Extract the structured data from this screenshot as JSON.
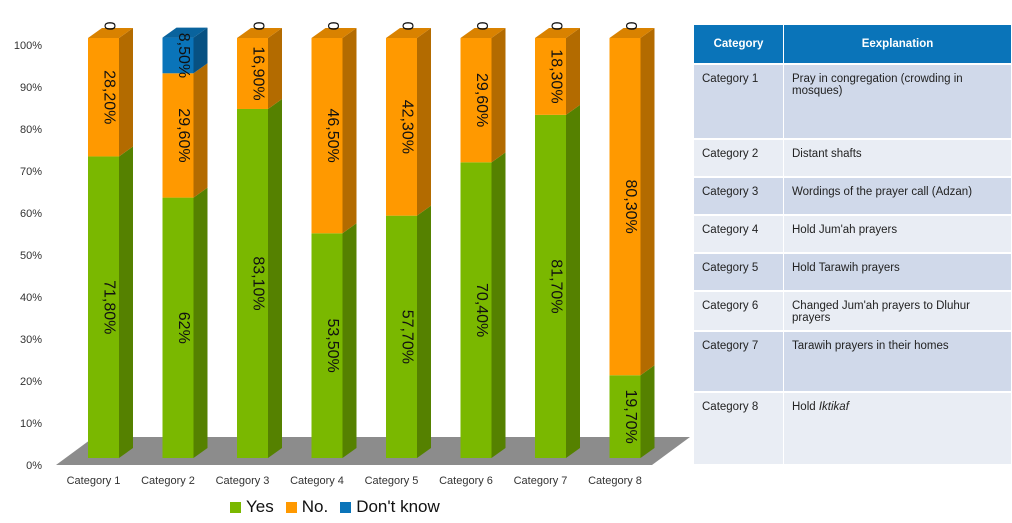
{
  "chart_data": {
    "type": "stacked-bar-3d",
    "categories": [
      "Category 1",
      "Category 2",
      "Category 3",
      "Category 4",
      "Category 5",
      "Category 6",
      "Category 7",
      "Category 8"
    ],
    "series": [
      {
        "name": "Yes",
        "color": "#7ab800",
        "values": [
          71.8,
          62,
          83.1,
          53.5,
          57.7,
          70.4,
          81.7,
          19.7
        ],
        "labels": [
          "71,80%",
          "62%",
          "83,10%",
          "53,50%",
          "57,70%",
          "70,40%",
          "81,70%",
          "19,70%"
        ]
      },
      {
        "name": "No.",
        "color": "#ff9900",
        "values": [
          28.2,
          29.6,
          16.9,
          46.5,
          42.3,
          29.6,
          18.3,
          80.3
        ],
        "labels": [
          "28,20%",
          "29,60%",
          "16,90%",
          "46,50%",
          "42,30%",
          "29,60%",
          "18,30%",
          "80,30%"
        ]
      },
      {
        "name": "Don't know",
        "color": "#0a74b9",
        "values": [
          0,
          8.5,
          0,
          0,
          0,
          0,
          0,
          0
        ],
        "labels": [
          "0",
          "8,50%",
          "0",
          "0",
          "0",
          "0",
          "0",
          "0"
        ]
      }
    ],
    "y_ticks": [
      "0%",
      "10%",
      "20%",
      "30%",
      "40%",
      "50%",
      "60%",
      "70%",
      "80%",
      "90%",
      "100%"
    ],
    "ylim": [
      0,
      100
    ],
    "legend_position": "bottom"
  },
  "table": {
    "headers": [
      "Category",
      "Eexplanation"
    ],
    "rows": [
      {
        "category": "Category 1",
        "explanation": "Pray in congregation (crowding in mosques)"
      },
      {
        "category": "Category 2",
        "explanation": "Distant shafts"
      },
      {
        "category": "Category 3",
        "explanation": "Wordings of the prayer call (Adzan)"
      },
      {
        "category": "Category 4",
        "explanation": "Hold Jum'ah prayers"
      },
      {
        "category": "Category 5",
        "explanation": "Hold Tarawih prayers"
      },
      {
        "category": "Category 6",
        "explanation": "Changed Jum'ah prayers to Dluhur prayers"
      },
      {
        "category": "Category 7",
        "explanation": "Tarawih prayers in their homes"
      },
      {
        "category": "Category 8",
        "explanation_prefix": "Hold ",
        "explanation_italic": "Iktikaf"
      }
    ]
  }
}
